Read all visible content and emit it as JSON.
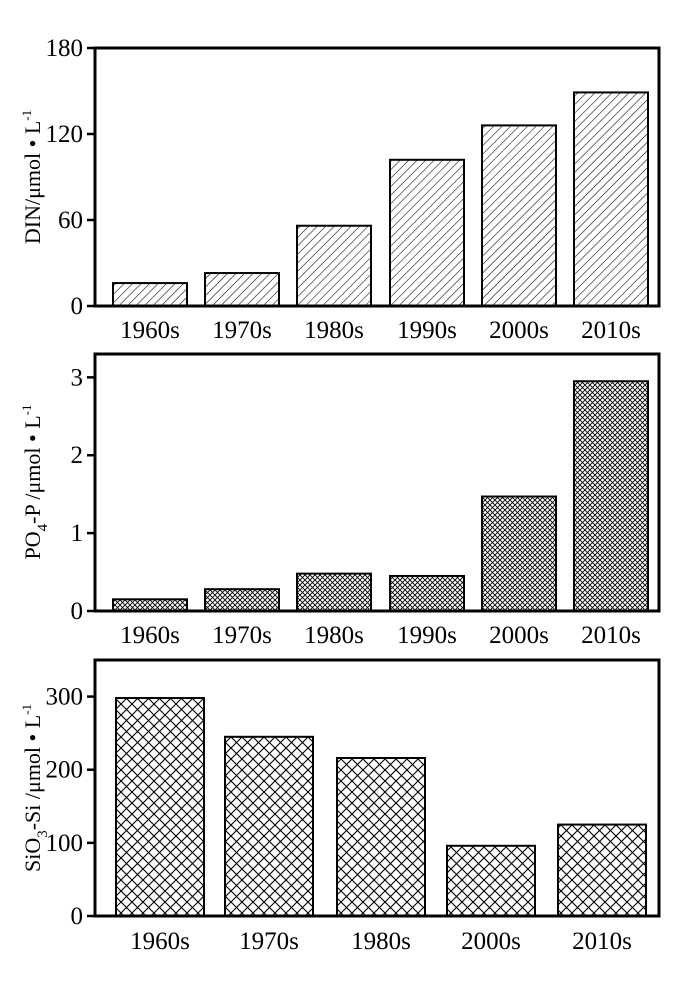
{
  "chart_data": [
    {
      "type": "bar",
      "ylabel_parts": [
        "DIN/μmol • L",
        "-1"
      ],
      "ylim": [
        0,
        180
      ],
      "yticks": [
        "0",
        "60",
        "120",
        "180"
      ],
      "categories": [
        "1960s",
        "1970s",
        "1980s",
        "1990s",
        "2000s",
        "2010s"
      ],
      "values": [
        16,
        23,
        56,
        102,
        126,
        149
      ],
      "hatch": "diagonal",
      "grid": false
    },
    {
      "type": "bar",
      "ylabel_parts": [
        "PO",
        "4",
        "-P /μmol • L",
        "-1"
      ],
      "ylim": [
        0,
        3.3
      ],
      "yticks": [
        "0",
        "1",
        "2",
        "3"
      ],
      "categories": [
        "1960s",
        "1970s",
        "1980s",
        "1990s",
        "2000s",
        "2010s"
      ],
      "values": [
        0.15,
        0.28,
        0.48,
        0.45,
        1.47,
        2.95
      ],
      "hatch": "fine-crosshatch",
      "grid": false
    },
    {
      "type": "bar",
      "ylabel_parts": [
        "SiO",
        "3",
        "-Si /μmol • L",
        "-1"
      ],
      "ylim": [
        0,
        350
      ],
      "yticks": [
        "0",
        "100",
        "200",
        "300"
      ],
      "categories": [
        "1960s",
        "1970s",
        "1980s",
        "2000s",
        "2010s"
      ],
      "values": [
        298,
        245,
        216,
        96,
        125
      ],
      "hatch": "coarse-crosshatch",
      "grid": false
    }
  ]
}
